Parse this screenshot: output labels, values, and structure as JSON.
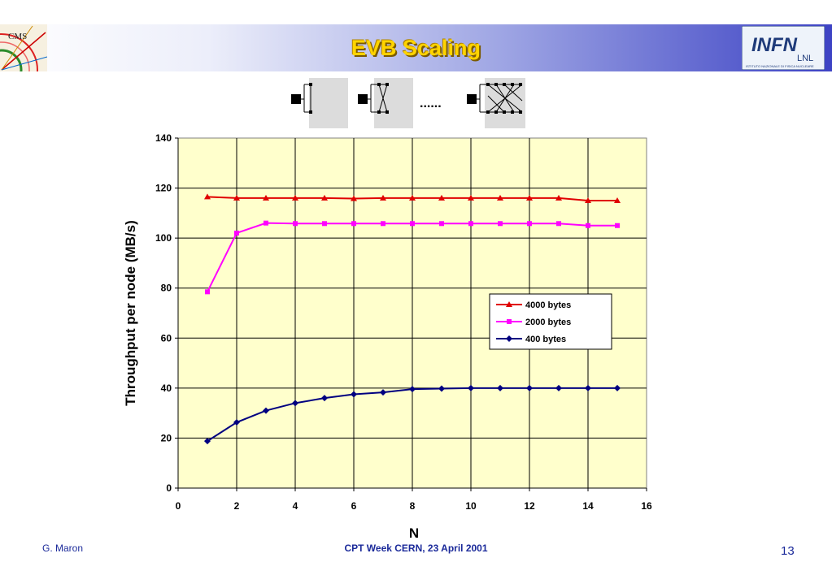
{
  "slide": {
    "title": "EVB Scaling",
    "logo_left_text": "CMS",
    "logo_right_text": "INFN",
    "logo_right_sub": "LNL",
    "logo_right_caption": "ISTITUTO NAZIONALE DI FISICA NUCLEARE",
    "dots": "......",
    "footer_author": "G. Maron",
    "footer_event": "CPT  Week    CERN, 23 April 2001",
    "page_number": "13"
  },
  "colors": {
    "plot_bg": "#ffffcc",
    "series_4000": "#e00000",
    "series_2000": "#ff00ff",
    "series_400": "#000080",
    "title": "#ffd400",
    "footer": "#1b2a9a"
  },
  "chart_data": {
    "type": "line",
    "title": "",
    "xlabel": "N",
    "ylabel": "Throughput per node (MB/s)",
    "xlim": [
      0,
      16
    ],
    "ylim": [
      0,
      140
    ],
    "x_ticks": [
      "0",
      "2",
      "4",
      "6",
      "8",
      "10",
      "12",
      "14",
      "16"
    ],
    "y_ticks": [
      "0",
      "20",
      "40",
      "60",
      "80",
      "100",
      "120",
      "140"
    ],
    "grid": true,
    "legend_position": "right-middle",
    "x": [
      1,
      2,
      3,
      4,
      5,
      6,
      7,
      8,
      9,
      10,
      11,
      12,
      13,
      14,
      15
    ],
    "series": [
      {
        "name": "4000 bytes",
        "marker": "triangle",
        "color": "#e00000",
        "values": [
          116.5,
          116,
          116,
          116,
          116,
          115.8,
          116,
          116,
          116,
          116,
          116,
          116,
          116,
          115,
          115
        ]
      },
      {
        "name": "2000  bytes",
        "marker": "square",
        "color": "#ff00ff",
        "values": [
          78.5,
          102,
          106,
          105.8,
          105.8,
          105.8,
          105.8,
          105.8,
          105.8,
          105.8,
          105.8,
          105.8,
          105.8,
          105,
          105
        ]
      },
      {
        "name": "400 bytes",
        "marker": "diamond",
        "color": "#000080",
        "values": [
          18.8,
          26.3,
          31,
          34,
          36,
          37.5,
          38.3,
          39.6,
          39.8,
          40,
          40,
          40,
          40,
          40,
          40
        ]
      }
    ]
  }
}
